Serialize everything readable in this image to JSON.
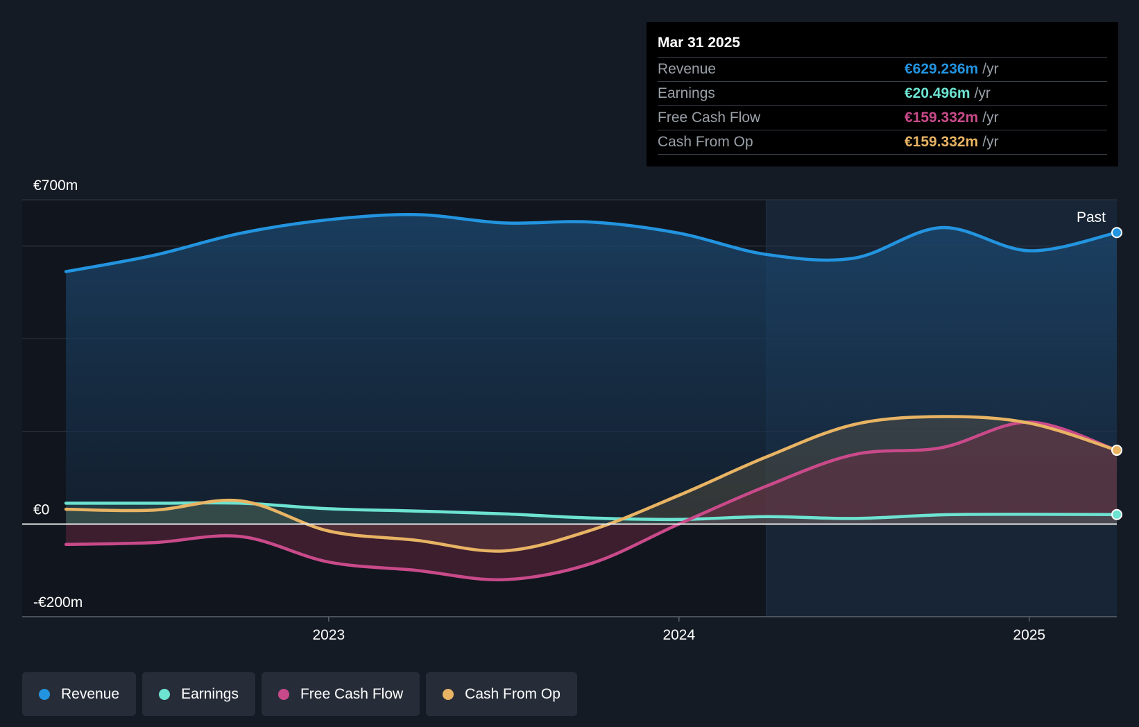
{
  "tooltip": {
    "date": "Mar 31 2025",
    "rows": [
      {
        "label": "Revenue",
        "value": "€629.236m",
        "unit": "/yr",
        "color": "#2394df"
      },
      {
        "label": "Earnings",
        "value": "€20.496m",
        "unit": "/yr",
        "color": "#6de3d1"
      },
      {
        "label": "Free Cash Flow",
        "value": "€159.332m",
        "unit": "/yr",
        "color": "#c94a8a"
      },
      {
        "label": "Cash From Op",
        "value": "€159.332m",
        "unit": "/yr",
        "color": "#e8b464"
      }
    ]
  },
  "legend": [
    {
      "label": "Revenue",
      "color": "#2394df"
    },
    {
      "label": "Earnings",
      "color": "#6de3d1"
    },
    {
      "label": "Free Cash Flow",
      "color": "#c94a8a"
    },
    {
      "label": "Cash From Op",
      "color": "#e8b464"
    }
  ],
  "past_label": "Past",
  "chart_data": {
    "type": "line",
    "title": "",
    "xlabel": "",
    "ylabel": "",
    "ylim": [
      -200,
      700
    ],
    "ytick_labels": [
      {
        "value": 700,
        "label": "€700m"
      },
      {
        "value": 0,
        "label": "€0"
      },
      {
        "value": -200,
        "label": "-€200m"
      }
    ],
    "gridlines": [
      700,
      600,
      400,
      200,
      0,
      -200
    ],
    "xlim": [
      2022.125,
      2025.25
    ],
    "xticks": [
      {
        "value": 2023.0,
        "label": "2023"
      },
      {
        "value": 2024.0,
        "label": "2024"
      },
      {
        "value": 2025.0,
        "label": "2025"
      }
    ],
    "past_region_start": 2024.25,
    "series": [
      {
        "name": "Revenue",
        "color": "#2394df",
        "points": [
          [
            2022.25,
            545
          ],
          [
            2022.5,
            580
          ],
          [
            2022.75,
            628
          ],
          [
            2023.0,
            657
          ],
          [
            2023.25,
            668
          ],
          [
            2023.5,
            650
          ],
          [
            2023.75,
            652
          ],
          [
            2024.0,
            628
          ],
          [
            2024.25,
            582
          ],
          [
            2024.5,
            574
          ],
          [
            2024.75,
            640
          ],
          [
            2025.0,
            590
          ],
          [
            2025.25,
            629.236
          ]
        ]
      },
      {
        "name": "Earnings",
        "color": "#6de3d1",
        "points": [
          [
            2022.25,
            45
          ],
          [
            2022.5,
            45
          ],
          [
            2022.75,
            45
          ],
          [
            2023.0,
            33
          ],
          [
            2023.25,
            28
          ],
          [
            2023.5,
            22
          ],
          [
            2023.75,
            13
          ],
          [
            2024.0,
            10
          ],
          [
            2024.25,
            16
          ],
          [
            2024.5,
            12
          ],
          [
            2024.75,
            20
          ],
          [
            2025.0,
            21
          ],
          [
            2025.25,
            20.496
          ]
        ]
      },
      {
        "name": "Free Cash Flow",
        "color": "#c94a8a",
        "points": [
          [
            2022.25,
            -44
          ],
          [
            2022.5,
            -40
          ],
          [
            2022.75,
            -27
          ],
          [
            2023.0,
            -82
          ],
          [
            2023.25,
            -100
          ],
          [
            2023.5,
            -120
          ],
          [
            2023.75,
            -85
          ],
          [
            2024.0,
            0
          ],
          [
            2024.25,
            82
          ],
          [
            2024.5,
            150
          ],
          [
            2024.75,
            165
          ],
          [
            2025.0,
            220
          ],
          [
            2025.25,
            159.332
          ]
        ]
      },
      {
        "name": "Cash From Op",
        "color": "#e8b464",
        "points": [
          [
            2022.25,
            32
          ],
          [
            2022.5,
            30
          ],
          [
            2022.75,
            50
          ],
          [
            2023.0,
            -15
          ],
          [
            2023.25,
            -35
          ],
          [
            2023.5,
            -58
          ],
          [
            2023.75,
            -13
          ],
          [
            2024.0,
            62
          ],
          [
            2024.25,
            145
          ],
          [
            2024.5,
            215
          ],
          [
            2024.75,
            232
          ],
          [
            2025.0,
            218
          ],
          [
            2025.25,
            159.332
          ]
        ]
      }
    ]
  }
}
